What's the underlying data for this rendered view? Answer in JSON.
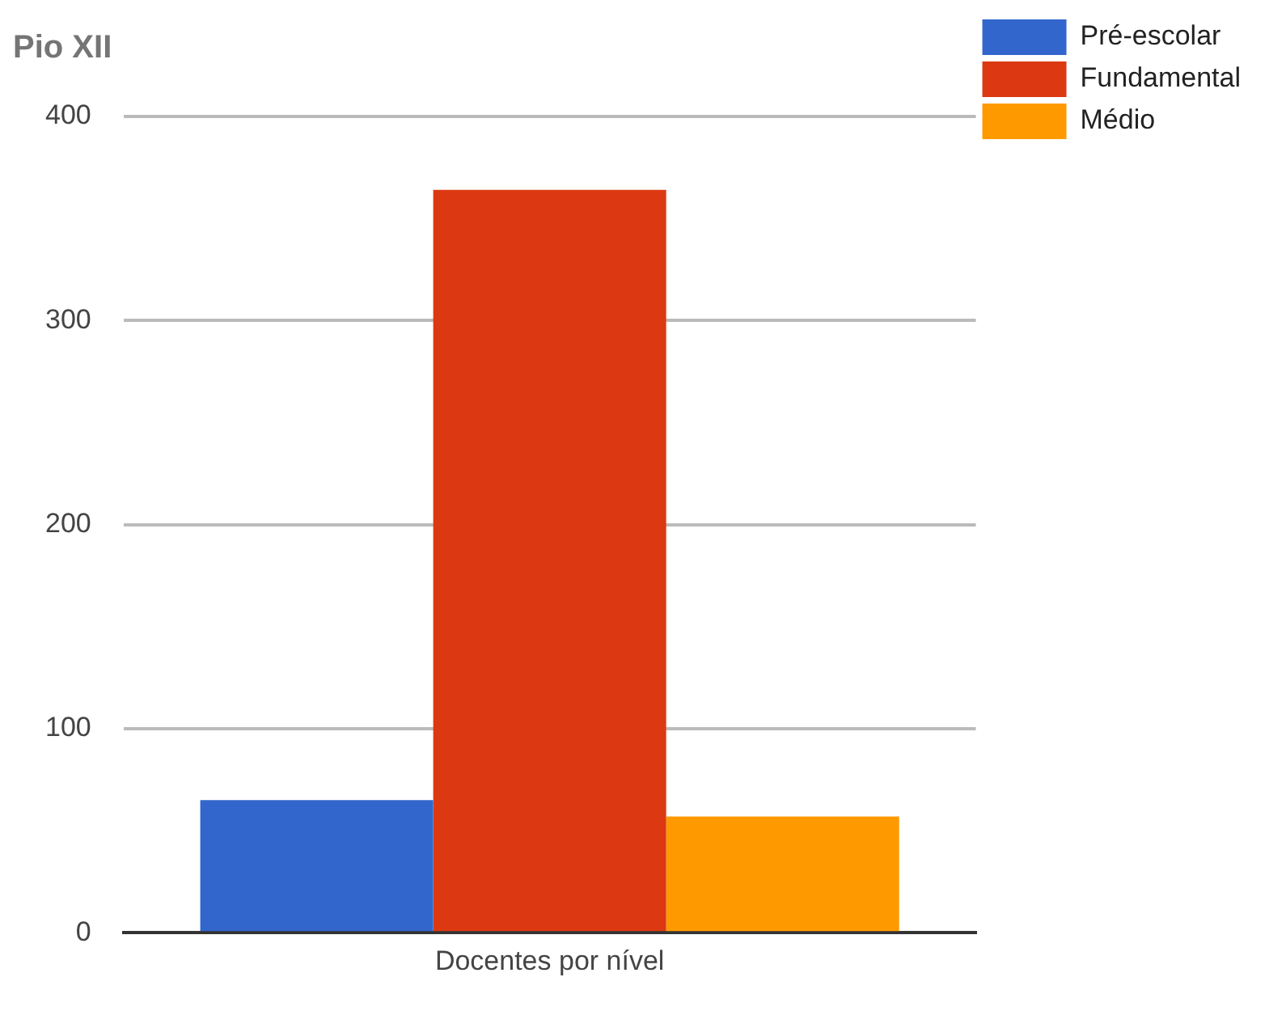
{
  "chart_data": {
    "type": "bar",
    "title": "Pio XII",
    "categories": [
      "Docentes por nível"
    ],
    "series": [
      {
        "name": "Pré-escolar",
        "color": "#3366cc",
        "values": [
          65
        ]
      },
      {
        "name": "Fundamental",
        "color": "#dc3912",
        "values": [
          364
        ]
      },
      {
        "name": "Médio",
        "color": "#ff9900",
        "values": [
          57
        ]
      }
    ],
    "ylim": [
      0,
      400
    ],
    "yticks": [
      0,
      100,
      200,
      300,
      400
    ],
    "grid": "y",
    "legend": "top right"
  }
}
